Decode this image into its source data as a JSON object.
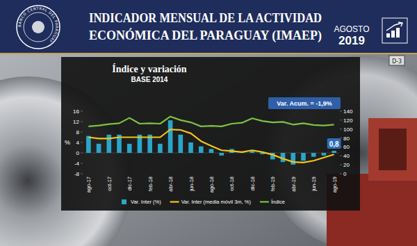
{
  "header": {
    "title_lines": [
      "INDICADOR MENSUAL DE LA ACTIVIDAD",
      "ECONÓMICA DEL PARAGUAY (IMAEP)"
    ],
    "month": "AGOSTO",
    "year": "2019",
    "logo_text": "BANCO CENTRAL DEL PARAGUAY"
  },
  "background_label": "D-3",
  "chart_data": {
    "type": "bar",
    "title": "Índice y variación",
    "subtitle": "BASE 2014",
    "y_label": "%",
    "categories": [
      "ago-17",
      null,
      "oct-17",
      null,
      "dic-17",
      null,
      "feb-18",
      null,
      "abr-18",
      null,
      "jun-18",
      null,
      "ago-18",
      null,
      "oct-18",
      null,
      "dic-18",
      null,
      "feb-19",
      null,
      "abr-19",
      null,
      "jun-19",
      null,
      "ago-19"
    ],
    "series": [
      {
        "name": "Var. Inter (%)",
        "type": "bar",
        "color": "#2aa6c8",
        "values": [
          6.5,
          3.5,
          7.0,
          7.0,
          3.5,
          7.0,
          7.0,
          3.5,
          12.5,
          7.0,
          4.0,
          2.5,
          1.5,
          -1.0,
          1.5,
          0.5,
          1.0,
          -0.5,
          -2.5,
          -3.5,
          -4.5,
          -3.0,
          -1.5,
          -1.0,
          0.8
        ],
        "value_labels": [
          null,
          null,
          null,
          null,
          null,
          null,
          null,
          null,
          null,
          null,
          null,
          null,
          null,
          null,
          null,
          null,
          null,
          null,
          null,
          null,
          null,
          null,
          null,
          null,
          "0,8"
        ]
      },
      {
        "name": "Var. Inter (media móvil 3m, %)",
        "type": "line",
        "color": "#f5c518",
        "values": [
          6.0,
          5.5,
          5.5,
          6.0,
          6.0,
          6.0,
          6.0,
          6.0,
          9.0,
          8.8,
          7.5,
          4.5,
          2.7,
          1.0,
          0.7,
          0.3,
          1.0,
          0.3,
          -0.7,
          -2.2,
          -3.5,
          -3.7,
          -3.0,
          -1.8,
          -0.6
        ]
      },
      {
        "name": "Índice",
        "type": "line",
        "color": "#7dc242",
        "axis": "y2",
        "values": [
          106,
          108,
          111,
          113,
          125,
          112,
          113,
          112,
          128,
          120,
          115,
          106,
          107,
          106,
          112,
          114,
          124,
          118,
          115,
          116,
          110,
          113,
          109,
          108,
          110
        ]
      }
    ],
    "ylim": [
      -8,
      16
    ],
    "yticks": [
      -8,
      -4,
      0,
      4,
      8,
      12,
      16
    ],
    "y2lim": [
      0,
      140
    ],
    "y2ticks": [
      0,
      20,
      40,
      60,
      80,
      100,
      120,
      140
    ],
    "annotations": [
      "Var. Acum. = -1,9%"
    ],
    "data_labels": true,
    "grid": false,
    "legend": "bottom"
  }
}
